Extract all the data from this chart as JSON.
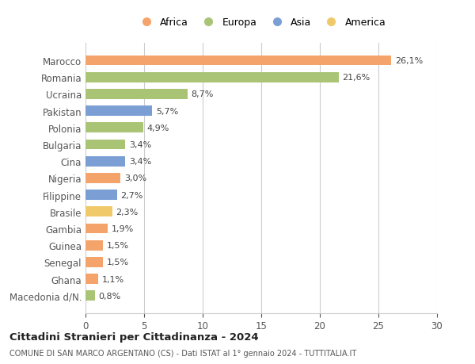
{
  "categories": [
    "Macedonia d/N.",
    "Ghana",
    "Senegal",
    "Guinea",
    "Gambia",
    "Brasile",
    "Filippine",
    "Nigeria",
    "Cina",
    "Bulgaria",
    "Polonia",
    "Pakistan",
    "Ucraina",
    "Romania",
    "Marocco"
  ],
  "values": [
    0.8,
    1.1,
    1.5,
    1.5,
    1.9,
    2.3,
    2.7,
    3.0,
    3.4,
    3.4,
    4.9,
    5.7,
    8.7,
    21.6,
    26.1
  ],
  "labels": [
    "0,8%",
    "1,1%",
    "1,5%",
    "1,5%",
    "1,9%",
    "2,3%",
    "2,7%",
    "3,0%",
    "3,4%",
    "3,4%",
    "4,9%",
    "5,7%",
    "8,7%",
    "21,6%",
    "26,1%"
  ],
  "colors": [
    "#aac476",
    "#f4a46a",
    "#f4a46a",
    "#f4a46a",
    "#f4a46a",
    "#f0c96a",
    "#7b9fd4",
    "#f4a46a",
    "#7b9fd4",
    "#aac476",
    "#aac476",
    "#7b9fd4",
    "#aac476",
    "#aac476",
    "#f4a46a"
  ],
  "legend_labels": [
    "Africa",
    "Europa",
    "Asia",
    "America"
  ],
  "legend_colors": [
    "#f4a46a",
    "#aac476",
    "#7b9fd4",
    "#f0c96a"
  ],
  "title1": "Cittadini Stranieri per Cittadinanza - 2024",
  "title2": "COMUNE DI SAN MARCO ARGENTANO (CS) - Dati ISTAT al 1° gennaio 2024 - TUTTITALIA.IT",
  "xlim": [
    0,
    30
  ],
  "xticks": [
    0,
    5,
    10,
    15,
    20,
    25,
    30
  ],
  "background_color": "#ffffff",
  "grid_color": "#cccccc",
  "bar_height": 0.6
}
